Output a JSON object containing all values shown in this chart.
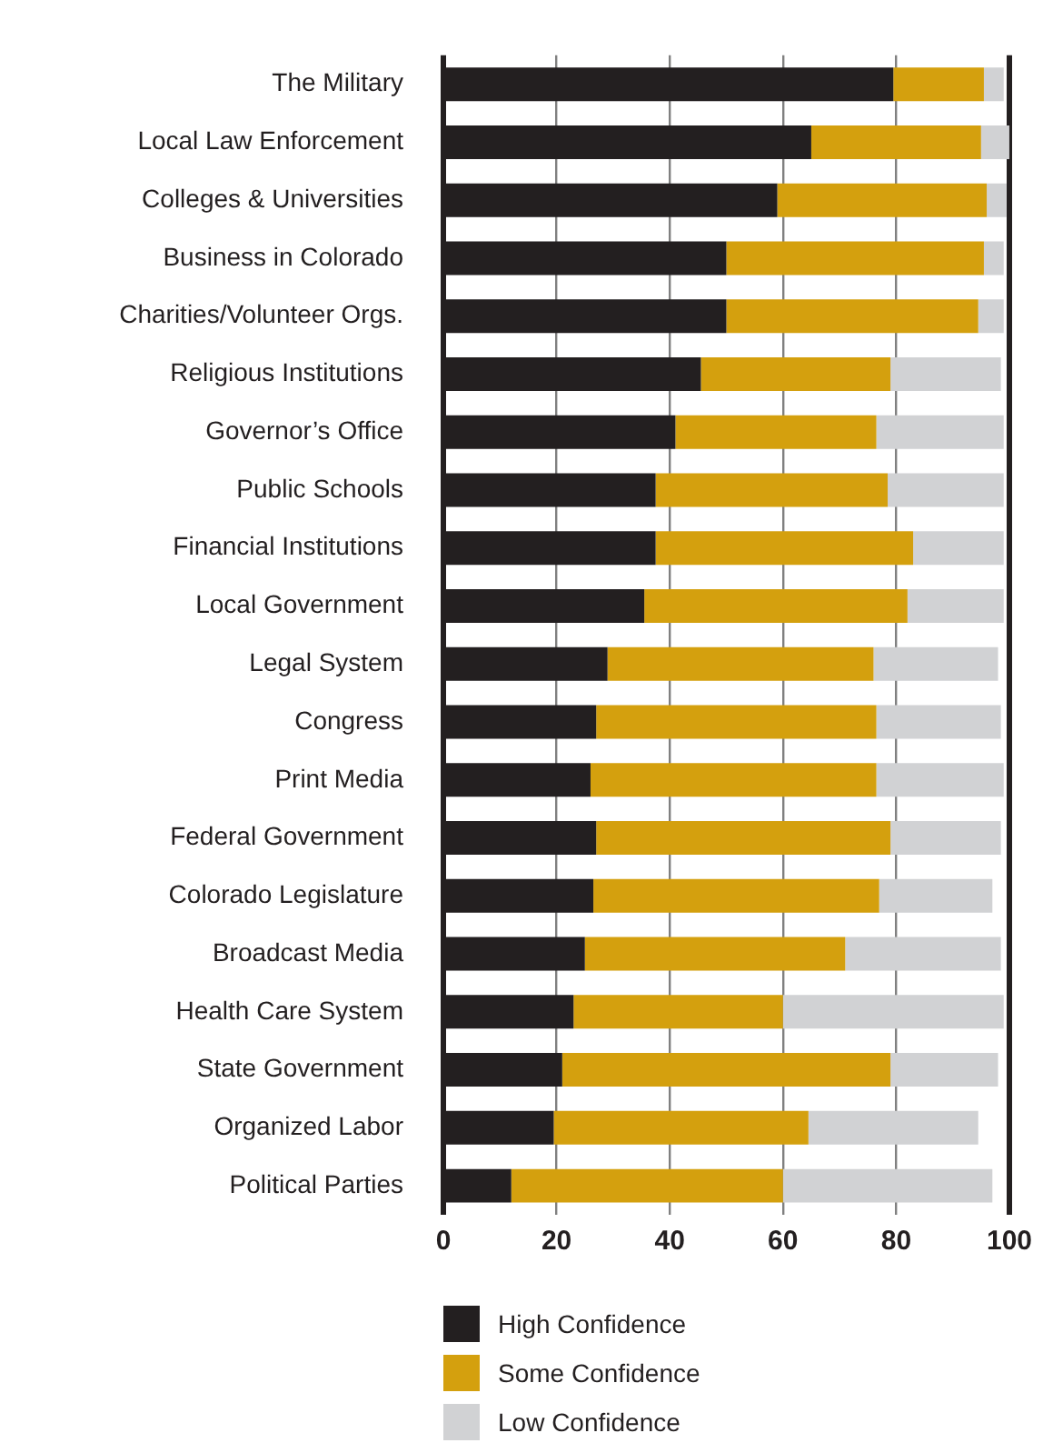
{
  "chart_data": {
    "type": "bar",
    "orientation": "horizontal",
    "stacked": true,
    "categories": [
      "The Military",
      "Local Law Enforcement",
      "Colleges & Universities",
      "Business in Colorado",
      "Charities/Volunteer Orgs.",
      "Religious Institutions",
      "Governor’s Office",
      "Public Schools",
      "Financial Institutions",
      "Local Government",
      "Legal System",
      "Congress",
      "Print Media",
      "Federal Government",
      "Colorado Legislature",
      "Broadcast Media",
      "Health Care System",
      "State Government",
      "Organized Labor",
      "Political Parties"
    ],
    "series": [
      {
        "name": "High Confidence",
        "color": "#231f20",
        "values": [
          79.5,
          65,
          59,
          50,
          50,
          45.5,
          41,
          37.5,
          37.5,
          35.5,
          29,
          27,
          26,
          27,
          26.5,
          25,
          23,
          21,
          19.5,
          12
        ]
      },
      {
        "name": "Some Confidence",
        "color": "#d4a00e",
        "values": [
          16,
          30,
          37,
          45.5,
          44.5,
          33.5,
          35.5,
          41,
          45.5,
          46.5,
          47,
          49.5,
          50.5,
          52,
          50.5,
          46,
          37,
          58,
          45,
          48
        ]
      },
      {
        "name": "Low Confidence",
        "color": "#d1d2d4",
        "values": [
          3.5,
          5,
          3.5,
          3.5,
          4.5,
          19.5,
          22.5,
          20.5,
          16,
          17,
          22,
          22,
          22.5,
          19.5,
          20,
          27.5,
          39,
          19,
          30,
          37
        ]
      }
    ],
    "xlim": [
      0,
      100
    ],
    "xticks": [
      0,
      20,
      40,
      60,
      80,
      100
    ],
    "grid": "x",
    "legend": "bottom left"
  }
}
